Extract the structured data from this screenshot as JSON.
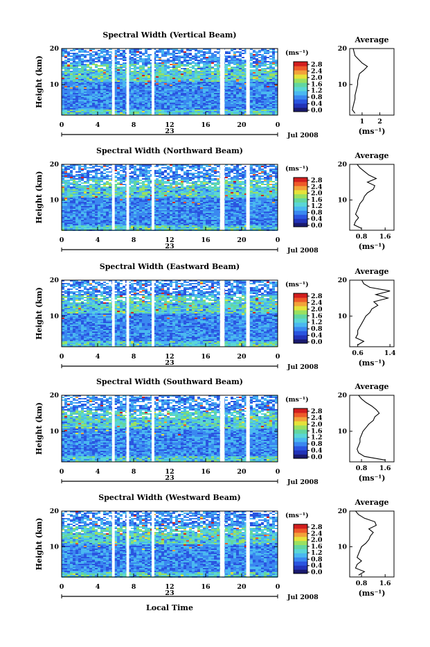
{
  "figure": {
    "xlabel": "Local Time",
    "date_label": "Jul 2008",
    "day_label": "23",
    "ylabel": "Height (km)",
    "average_title": "Average",
    "cbar_unit": "(ms⁻¹)",
    "avg_xunit": "(ms⁻¹)"
  },
  "chart_data": [
    {
      "type": "heatmap",
      "title": "Spectral Width (Vertical Beam)",
      "xlabel": "Local Time",
      "ylabel": "Height (km)",
      "x_ticks": [
        "0",
        "4",
        "8",
        "12",
        "16",
        "20",
        "0"
      ],
      "xlim": [
        0,
        24
      ],
      "y_ticks": [
        "10",
        "20"
      ],
      "ylim": [
        1.5,
        20
      ],
      "colorbar": {
        "ticks": [
          "0.0",
          "0.4",
          "0.8",
          "1.2",
          "1.6",
          "2.0",
          "2.4",
          "2.8"
        ],
        "range": [
          0.0,
          2.8
        ],
        "unit": "(ms⁻¹)"
      },
      "data_gaps_hours": [
        [
          5.6,
          5.9
        ],
        [
          7.2,
          7.5
        ],
        [
          10.0,
          10.3
        ],
        [
          17.6,
          18.1
        ],
        [
          20.5,
          20.9
        ]
      ],
      "average_profile": {
        "xlim": [
          0.3,
          2.8
        ],
        "x_ticks": [
          "1",
          "2"
        ],
        "heights": [
          2,
          3,
          4,
          5,
          6,
          7,
          8,
          9,
          10,
          11,
          12,
          13,
          14,
          15,
          16,
          17,
          18,
          19,
          20
        ],
        "values": [
          0.6,
          0.45,
          0.5,
          0.55,
          0.6,
          0.6,
          0.65,
          0.7,
          0.75,
          0.75,
          0.8,
          0.85,
          1.1,
          1.3,
          1.0,
          0.8,
          0.6,
          0.55,
          0.5
        ]
      }
    },
    {
      "type": "heatmap",
      "title": "Spectral Width (Northward Beam)",
      "xlabel": "Local Time",
      "ylabel": "Height (km)",
      "x_ticks": [
        "0",
        "4",
        "8",
        "12",
        "16",
        "20",
        "0"
      ],
      "xlim": [
        0,
        24
      ],
      "y_ticks": [
        "10",
        "20"
      ],
      "ylim": [
        1.5,
        20
      ],
      "colorbar": {
        "ticks": [
          "0.0",
          "0.4",
          "0.8",
          "1.2",
          "1.6",
          "2.0",
          "2.4",
          "2.8"
        ],
        "range": [
          0.0,
          2.8
        ],
        "unit": "(ms⁻¹)"
      },
      "data_gaps_hours": [
        [
          5.6,
          5.9
        ],
        [
          7.2,
          7.5
        ],
        [
          10.0,
          10.3
        ],
        [
          17.6,
          18.1
        ],
        [
          20.5,
          20.9
        ]
      ],
      "average_profile": {
        "xlim": [
          0.4,
          1.9
        ],
        "x_ticks": [
          "0.8",
          "1.6"
        ],
        "heights": [
          2,
          3,
          4,
          5,
          6,
          7,
          8,
          9,
          10,
          11,
          12,
          13,
          14,
          15,
          16,
          17,
          18,
          19,
          20
        ],
        "values": [
          0.8,
          0.55,
          0.6,
          0.7,
          0.6,
          0.65,
          0.7,
          0.75,
          0.85,
          0.9,
          1.0,
          1.2,
          1.25,
          1.0,
          1.3,
          1.05,
          0.9,
          0.75,
          0.65
        ]
      }
    },
    {
      "type": "heatmap",
      "title": "Spectral Width (Eastward Beam)",
      "xlabel": "Local Time",
      "ylabel": "Height (km)",
      "x_ticks": [
        "0",
        "4",
        "8",
        "12",
        "16",
        "20",
        "0"
      ],
      "xlim": [
        0,
        24
      ],
      "y_ticks": [
        "10",
        "20"
      ],
      "ylim": [
        1.5,
        20
      ],
      "colorbar": {
        "ticks": [
          "0.0",
          "0.4",
          "0.8",
          "1.2",
          "1.6",
          "2.0",
          "2.4",
          "2.8"
        ],
        "range": [
          0.0,
          2.8
        ],
        "unit": "(ms⁻¹)"
      },
      "data_gaps_hours": [
        [
          5.6,
          5.9
        ],
        [
          7.2,
          7.5
        ],
        [
          10.0,
          10.3
        ],
        [
          17.6,
          18.1
        ],
        [
          20.5,
          20.9
        ]
      ],
      "average_profile": {
        "xlim": [
          0.4,
          1.5
        ],
        "x_ticks": [
          "0.6",
          "1.4"
        ],
        "heights": [
          2,
          3,
          4,
          5,
          6,
          7,
          8,
          9,
          10,
          11,
          12,
          13,
          14,
          15,
          16,
          17,
          18,
          19,
          20
        ],
        "values": [
          0.6,
          0.75,
          0.55,
          0.6,
          0.6,
          0.65,
          0.7,
          0.75,
          0.8,
          0.9,
          0.95,
          1.1,
          1.0,
          1.35,
          1.05,
          1.4,
          0.9,
          0.75,
          0.7
        ]
      }
    },
    {
      "type": "heatmap",
      "title": "Spectral Width (Southward Beam)",
      "xlabel": "Local Time",
      "ylabel": "Height (km)",
      "x_ticks": [
        "0",
        "4",
        "8",
        "12",
        "16",
        "20",
        "0"
      ],
      "xlim": [
        0,
        24
      ],
      "y_ticks": [
        "10",
        "20"
      ],
      "ylim": [
        1.5,
        20
      ],
      "colorbar": {
        "ticks": [
          "0.0",
          "0.4",
          "0.8",
          "1.2",
          "1.6",
          "2.0",
          "2.4",
          "2.8"
        ],
        "range": [
          0.0,
          2.8
        ],
        "unit": "(ms⁻¹)"
      },
      "data_gaps_hours": [
        [
          5.6,
          5.9
        ],
        [
          7.2,
          7.5
        ],
        [
          10.0,
          10.3
        ],
        [
          17.6,
          18.1
        ],
        [
          20.5,
          20.9
        ]
      ],
      "average_profile": {
        "xlim": [
          0.4,
          1.9
        ],
        "x_ticks": [
          "0.8",
          "1.6"
        ],
        "heights": [
          2,
          3,
          4,
          5,
          6,
          7,
          8,
          9,
          10,
          11,
          12,
          13,
          14,
          15,
          16,
          17,
          18,
          19,
          20
        ],
        "values": [
          1.6,
          0.9,
          0.7,
          0.65,
          0.7,
          0.75,
          0.75,
          0.8,
          0.85,
          0.95,
          1.05,
          1.2,
          1.25,
          1.4,
          1.3,
          1.15,
          0.95,
          0.8,
          0.7
        ]
      }
    },
    {
      "type": "heatmap",
      "title": "Spectral Width (Westward Beam)",
      "xlabel": "Local Time",
      "ylabel": "Height (km)",
      "x_ticks": [
        "0",
        "4",
        "8",
        "12",
        "16",
        "20",
        "0"
      ],
      "xlim": [
        0,
        24
      ],
      "y_ticks": [
        "10",
        "20"
      ],
      "ylim": [
        1.5,
        20
      ],
      "colorbar": {
        "ticks": [
          "0.0",
          "0.4",
          "0.8",
          "1.2",
          "1.6",
          "2.0",
          "2.4",
          "2.8"
        ],
        "range": [
          0.0,
          2.8
        ],
        "unit": "(ms⁻¹)"
      },
      "data_gaps_hours": [
        [
          5.6,
          5.9
        ],
        [
          7.2,
          7.5
        ],
        [
          10.0,
          10.3
        ],
        [
          17.6,
          18.1
        ],
        [
          20.5,
          20.9
        ]
      ],
      "average_profile": {
        "xlim": [
          0.4,
          1.9
        ],
        "x_ticks": [
          "0.8",
          "1.6"
        ],
        "heights": [
          2,
          3,
          4,
          5,
          6,
          7,
          8,
          9,
          10,
          11,
          12,
          13,
          14,
          15,
          16,
          17,
          18,
          19,
          20
        ],
        "values": [
          0.7,
          0.9,
          0.6,
          0.65,
          0.8,
          0.65,
          0.7,
          0.75,
          0.8,
          0.95,
          1.05,
          1.1,
          1.2,
          1.05,
          1.3,
          1.25,
          0.9,
          0.7,
          0.6
        ]
      }
    }
  ]
}
